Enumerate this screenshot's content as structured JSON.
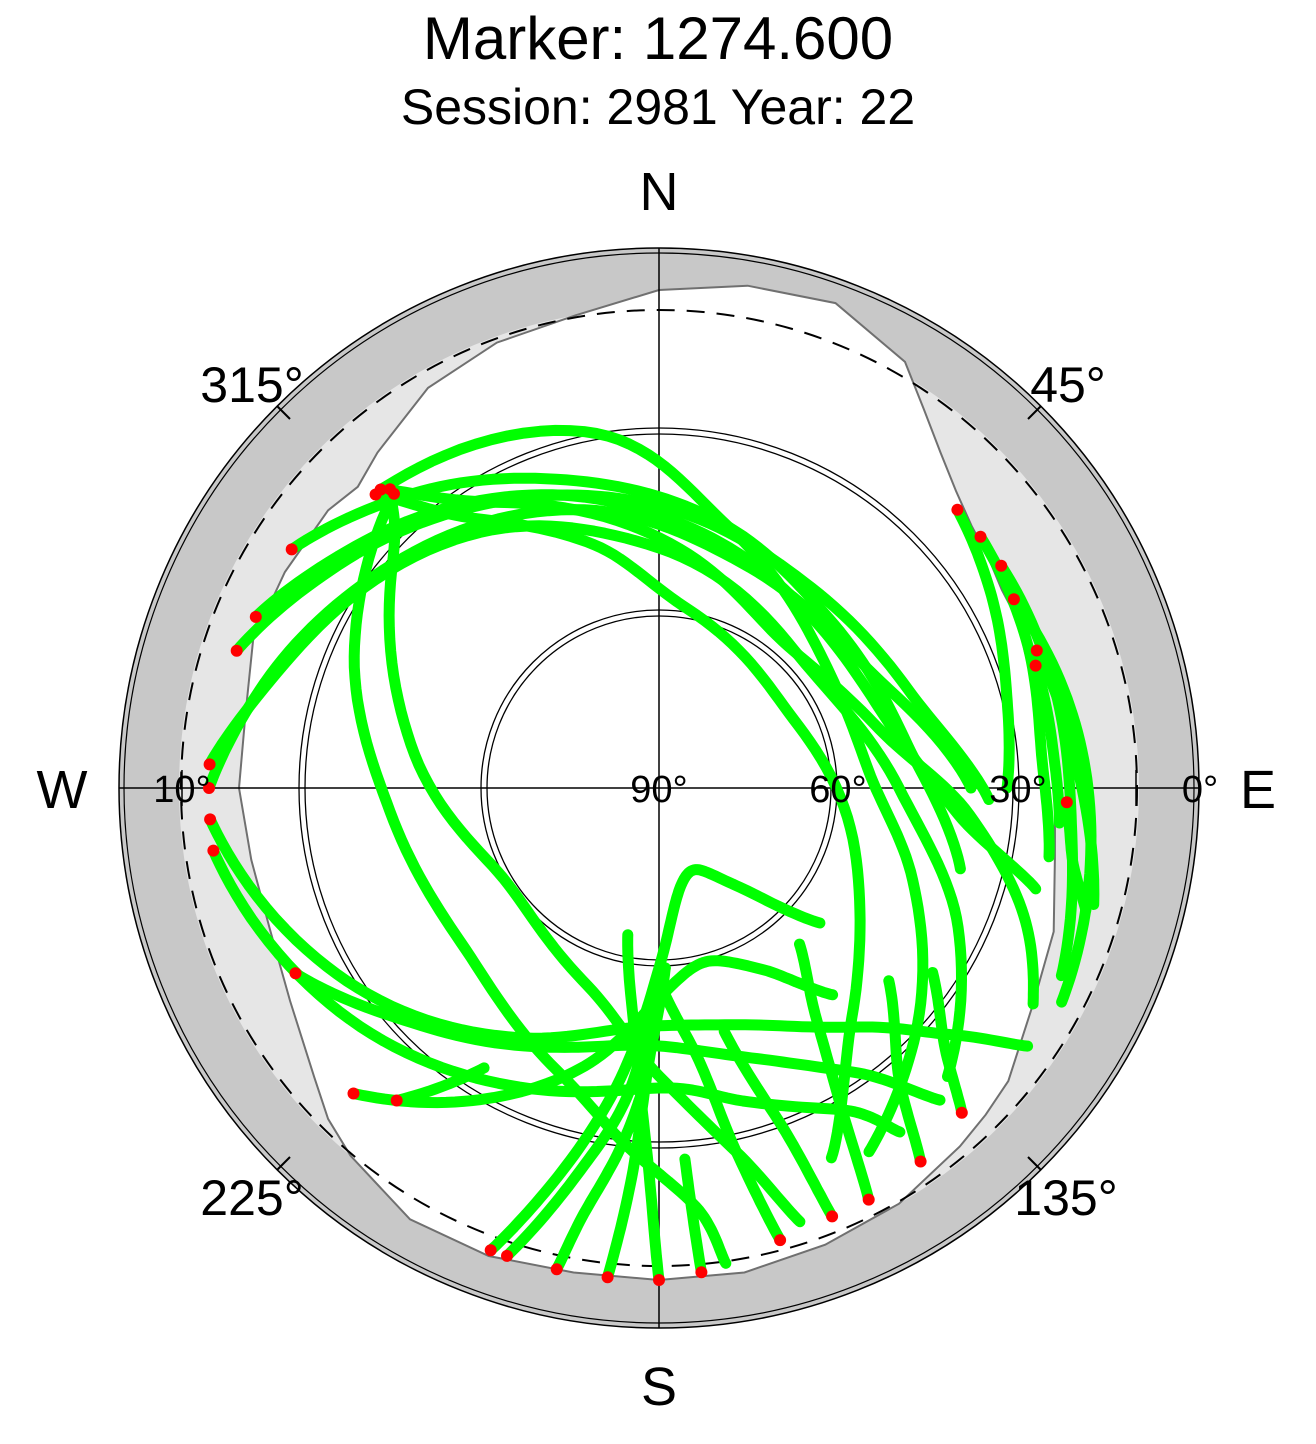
{
  "header": {
    "title": "Marker: 1274.600",
    "subtitle": "Session: 2981 Year: 22"
  },
  "compass": {
    "north": "N",
    "south": "S",
    "east": "E",
    "west": "W"
  },
  "azimuth_labels": [
    "45°",
    "135°",
    "225°",
    "315°"
  ],
  "elevation_labels": [
    "0°",
    "10°",
    "30°",
    "60°",
    "90°"
  ],
  "colors": {
    "track": "#00ff00",
    "track_end": "#ff0000",
    "outer_band": "#c8c8c8",
    "inner_band": "#e6e6e6",
    "horizon_mask_outline": "#707070",
    "grid": "#000000"
  },
  "chart_data": {
    "type": "scatter",
    "projection": "polar-skyplot",
    "title": "Marker: 1274.600",
    "subtitle": "Session: 2981 Year: 22",
    "azimuth_axis": {
      "zero": "N",
      "direction": "clockwise",
      "range": [
        0,
        360
      ]
    },
    "elevation_axis": {
      "center": 90,
      "edge": 0,
      "labels": [
        0,
        10,
        30,
        60,
        90
      ]
    },
    "legend": "none",
    "grid": true,
    "horizon_mask": {
      "description": "light gray obstruction region above horizon",
      "points": [
        [
          0,
          7
        ],
        [
          10,
          5
        ],
        [
          20,
          4
        ],
        [
          30,
          8
        ],
        [
          35,
          13
        ],
        [
          40,
          17
        ],
        [
          45,
          20
        ],
        [
          50,
          22
        ],
        [
          55,
          23
        ],
        [
          60,
          24
        ],
        [
          65,
          24
        ],
        [
          70,
          25
        ],
        [
          80,
          24
        ],
        [
          90,
          24
        ],
        [
          100,
          23
        ],
        [
          110,
          20
        ],
        [
          120,
          18
        ],
        [
          130,
          14
        ],
        [
          135,
          13
        ],
        [
          140,
          12
        ],
        [
          150,
          10
        ],
        [
          160,
          9
        ],
        [
          170,
          8
        ],
        [
          180,
          8
        ],
        [
          190,
          8
        ],
        [
          200,
          7
        ],
        [
          210,
          7
        ],
        [
          220,
          10
        ],
        [
          225,
          12
        ],
        [
          230,
          15
        ],
        [
          240,
          19
        ],
        [
          250,
          21
        ],
        [
          260,
          21
        ],
        [
          270,
          20
        ],
        [
          280,
          20
        ],
        [
          290,
          18
        ],
        [
          300,
          18
        ],
        [
          310,
          18
        ],
        [
          315,
          19
        ],
        [
          320,
          17
        ],
        [
          330,
          13
        ],
        [
          340,
          11
        ],
        [
          350,
          10
        ],
        [
          360,
          7
        ]
      ]
    },
    "series": [
      {
        "values": [
          [
            317,
            22
          ],
          [
            350,
            30
          ],
          [
            15,
            45
          ],
          [
            50,
            55
          ],
          [
            85,
            55
          ],
          [
            110,
            45
          ],
          [
            135,
            30
          ],
          [
            150,
            20
          ]
        ]
      },
      {
        "values": [
          [
            317,
            22
          ],
          [
            330,
            35
          ],
          [
            5,
            50
          ],
          [
            40,
            58
          ],
          [
            75,
            52
          ],
          [
            95,
            38
          ],
          [
            110,
            25
          ],
          [
            120,
            18
          ]
        ]
      },
      {
        "values": [
          [
            318,
            24
          ],
          [
            295,
            34
          ],
          [
            265,
            45
          ],
          [
            230,
            48
          ],
          [
            200,
            40
          ],
          [
            185,
            30
          ],
          [
            175,
            20
          ],
          [
            172,
            10
          ]
        ]
      },
      {
        "values": [
          [
            318,
            23
          ],
          [
            310,
            32
          ],
          [
            280,
            48
          ],
          [
            240,
            60
          ],
          [
            200,
            55
          ],
          [
            180,
            42
          ],
          [
            168,
            28
          ],
          [
            162,
            14
          ]
        ]
      },
      {
        "values": [
          [
            316,
            22
          ],
          [
            325,
            35
          ],
          [
            345,
            48
          ],
          [
            10,
            60
          ],
          [
            60,
            65
          ],
          [
            110,
            55
          ],
          [
            140,
            40
          ],
          [
            155,
            22
          ]
        ]
      },
      {
        "values": [
          [
            303,
            17
          ],
          [
            320,
            26
          ],
          [
            345,
            37
          ],
          [
            15,
            45
          ],
          [
            45,
            50
          ],
          [
            80,
            48
          ],
          [
            105,
            38
          ]
        ]
      },
      {
        "values": [
          [
            293,
            17
          ],
          [
            310,
            26
          ],
          [
            340,
            38
          ],
          [
            10,
            47
          ],
          [
            45,
            52
          ],
          [
            75,
            50
          ],
          [
            95,
            40
          ],
          [
            105,
            25
          ]
        ]
      },
      {
        "values": [
          [
            288,
            16
          ],
          [
            305,
            25
          ],
          [
            330,
            35
          ],
          [
            0,
            43
          ],
          [
            35,
            48
          ],
          [
            70,
            45
          ],
          [
            92,
            35
          ]
        ]
      },
      {
        "values": [
          [
            270,
            15
          ],
          [
            285,
            22
          ],
          [
            310,
            32
          ],
          [
            345,
            42
          ],
          [
            20,
            50
          ],
          [
            60,
            50
          ],
          [
            90,
            38
          ]
        ]
      },
      {
        "values": [
          [
            273,
            15
          ],
          [
            290,
            25
          ],
          [
            325,
            38
          ],
          [
            0,
            50
          ],
          [
            50,
            58
          ],
          [
            90,
            50
          ],
          [
            115,
            35
          ],
          [
            135,
            22
          ]
        ]
      },
      {
        "values": [
          [
            266,
            15
          ],
          [
            240,
            28
          ],
          [
            210,
            42
          ],
          [
            185,
            50
          ],
          [
            160,
            48
          ],
          [
            140,
            38
          ],
          [
            130,
            26
          ],
          [
            125,
            15
          ]
        ]
      },
      {
        "values": [
          [
            262,
            15
          ],
          [
            235,
            25
          ],
          [
            205,
            35
          ],
          [
            180,
            40
          ],
          [
            165,
            36
          ],
          [
            150,
            28
          ],
          [
            145,
            20
          ]
        ]
      },
      {
        "values": [
          [
            243,
            22
          ],
          [
            225,
            34
          ],
          [
            200,
            44
          ],
          [
            180,
            47
          ],
          [
            160,
            42
          ],
          [
            145,
            32
          ],
          [
            138,
            20
          ]
        ]
      },
      {
        "values": [
          [
            225,
            18
          ],
          [
            210,
            30
          ],
          [
            195,
            42
          ],
          [
            180,
            55
          ],
          [
            165,
            60
          ],
          [
            150,
            55
          ],
          [
            140,
            45
          ]
        ]
      },
      {
        "values": [
          [
            220,
            22
          ],
          [
            212,
            35
          ]
        ]
      },
      {
        "values": [
          [
            200,
            8
          ],
          [
            195,
            22
          ],
          [
            188,
            40
          ],
          [
            180,
            60
          ],
          [
            170,
            72
          ],
          [
            155,
            75
          ],
          [
            140,
            68
          ],
          [
            130,
            55
          ]
        ]
      },
      {
        "values": [
          [
            198,
            8
          ],
          [
            192,
            24
          ],
          [
            186,
            38
          ],
          [
            182,
            52
          ],
          [
            178,
            60
          ]
        ]
      },
      {
        "values": [
          [
            192,
            8
          ],
          [
            190,
            18
          ],
          [
            186,
            30
          ],
          [
            183,
            40
          ]
        ]
      },
      {
        "values": [
          [
            186,
            8
          ],
          [
            184,
            25
          ],
          [
            182,
            45
          ],
          [
            178,
            60
          ]
        ]
      },
      {
        "values": [
          [
            180,
            8
          ],
          [
            182,
            30
          ],
          [
            186,
            50
          ],
          [
            192,
            65
          ]
        ]
      },
      {
        "values": [
          [
            175,
            9
          ],
          [
            176,
            28
          ]
        ]
      },
      {
        "values": [
          [
            165,
            12
          ],
          [
            168,
            28
          ],
          [
            172,
            45
          ],
          [
            180,
            58
          ]
        ]
      },
      {
        "values": [
          [
            158,
            13
          ],
          [
            160,
            30
          ],
          [
            165,
            48
          ]
        ]
      },
      {
        "values": [
          [
            153,
            13
          ],
          [
            150,
            30
          ],
          [
            145,
            45
          ],
          [
            138,
            55
          ]
        ]
      },
      {
        "values": [
          [
            145,
            14
          ],
          [
            140,
            28
          ],
          [
            130,
            40
          ]
        ]
      },
      {
        "values": [
          [
            137,
            16
          ],
          [
            132,
            26
          ],
          [
            124,
            35
          ]
        ]
      },
      {
        "values": [
          [
            47,
            22
          ],
          [
            60,
            26
          ],
          [
            75,
            30
          ],
          [
            90,
            32
          ]
        ]
      },
      {
        "values": [
          [
            52,
            22
          ],
          [
            68,
            24
          ],
          [
            85,
            26
          ],
          [
            100,
            24
          ]
        ]
      },
      {
        "values": [
          [
            57,
            22
          ],
          [
            75,
            22
          ],
          [
            95,
            21
          ],
          [
            115,
            16
          ]
        ]
      },
      {
        "values": [
          [
            62,
            23
          ],
          [
            80,
            20
          ],
          [
            100,
            17
          ],
          [
            118,
            14
          ]
        ]
      },
      {
        "values": [
          [
            70,
            23
          ],
          [
            88,
            20
          ],
          [
            105,
            15
          ]
        ]
      },
      {
        "values": [
          [
            92,
            22
          ],
          [
            100,
            20
          ],
          [
            106,
            16
          ]
        ]
      },
      {
        "values": [
          [
            72,
            24
          ],
          [
            85,
            24
          ],
          [
            95,
            23
          ]
        ]
      }
    ]
  }
}
